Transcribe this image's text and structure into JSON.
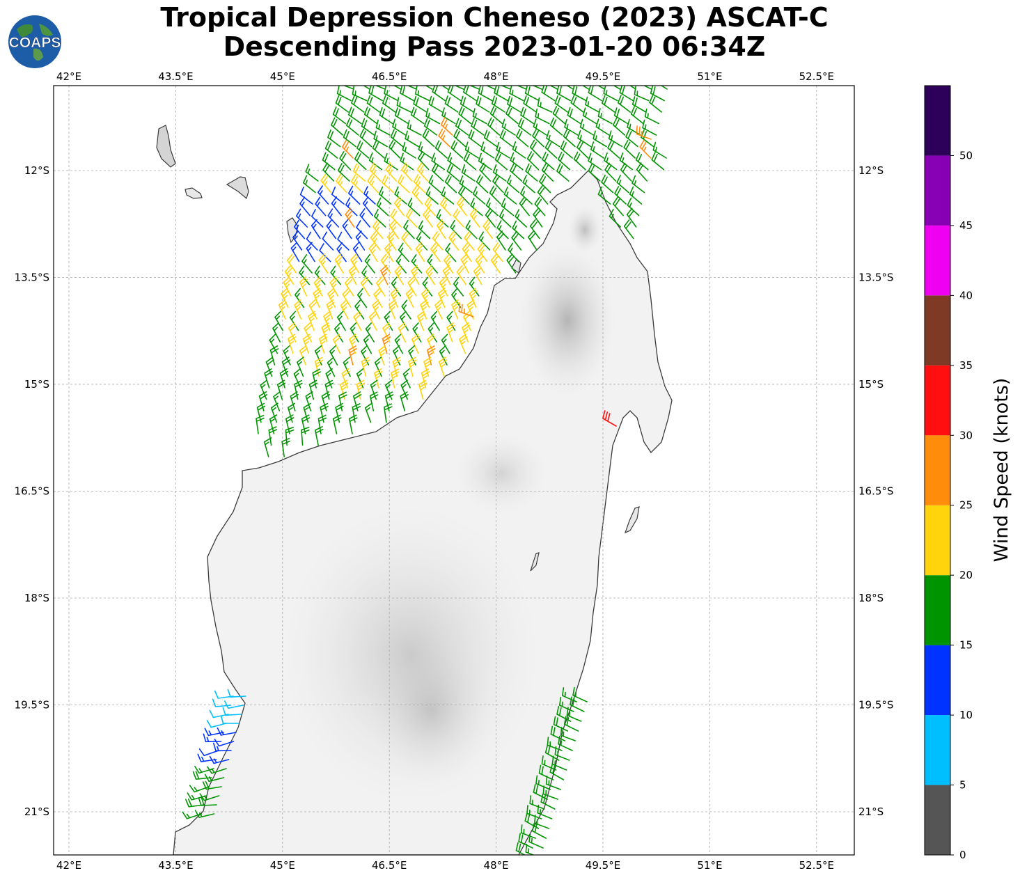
{
  "title": {
    "line1": "Tropical Depression Cheneso (2023) ASCAT-C",
    "line2": "Descending Pass 2023-01-20 06:34Z"
  },
  "logo": {
    "text": "COAPS",
    "icon": "globe-icon"
  },
  "map": {
    "lon_ticks": [
      "42°E",
      "43.5°E",
      "45°E",
      "46.5°E",
      "48°E",
      "49.5°E",
      "51°E",
      "52.5°E"
    ],
    "lat_ticks": [
      "12°S",
      "13.5°S",
      "15°S",
      "16.5°S",
      "18°S",
      "19.5°S",
      "21°S"
    ],
    "gridlines": true,
    "land_shading": "grayscale terrain"
  },
  "colorbar": {
    "label": "Wind Speed (knots)",
    "ticks": [
      "0",
      "5",
      "10",
      "15",
      "20",
      "25",
      "30",
      "35",
      "40",
      "45",
      "50"
    ],
    "bins": [
      {
        "from": 0,
        "to": 5,
        "color": "#555555"
      },
      {
        "from": 5,
        "to": 10,
        "color": "#00bfff"
      },
      {
        "from": 10,
        "to": 15,
        "color": "#0033ff"
      },
      {
        "from": 15,
        "to": 20,
        "color": "#009400"
      },
      {
        "from": 20,
        "to": 25,
        "color": "#ffd40c"
      },
      {
        "from": 25,
        "to": 30,
        "color": "#ff8c0a"
      },
      {
        "from": 30,
        "to": 35,
        "color": "#ff0f0f"
      },
      {
        "from": 35,
        "to": 40,
        "color": "#7f3a26"
      },
      {
        "from": 40,
        "to": 45,
        "color": "#f000f0"
      },
      {
        "from": 45,
        "to": 50,
        "color": "#8800b4"
      },
      {
        "from": 50,
        "to": 55,
        "color": "#2d005a"
      }
    ]
  }
}
